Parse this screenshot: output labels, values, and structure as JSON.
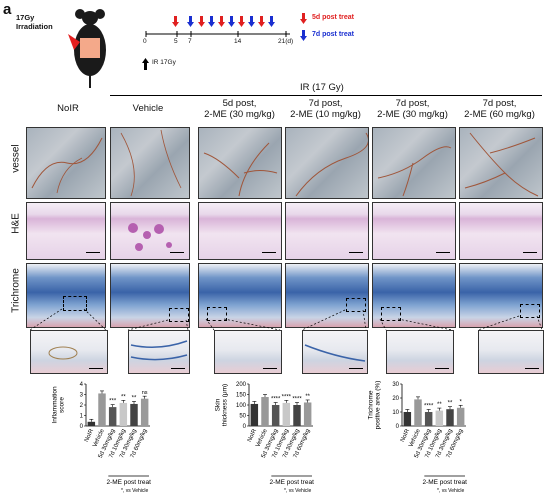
{
  "panel_letter": "a",
  "irradiation_label": "17Gy\nIrradiation",
  "timeline": {
    "ticks": [
      "0",
      "5",
      "7",
      "14",
      "21(d)"
    ],
    "ir_label": "IR 17Gy",
    "legend": [
      {
        "label": "5d post treat",
        "color": "#e02020"
      },
      {
        "label": "7d post treat",
        "color": "#1a2fd0"
      }
    ]
  },
  "ir_group_label": "IR (17 Gy)",
  "columns": [
    "NoIR",
    "Vehicle",
    "5d post,\n2-ME (30 mg/kg)",
    "7d post,\n2-ME (10 mg/kg)",
    "7d post,\n2-ME (30 mg/kg)",
    "7d post,\n2-ME (60 mg/kg)"
  ],
  "rows": [
    "vessel",
    "H&E",
    "Trichrome"
  ],
  "charts_footer": {
    "group_label": "2-ME post treat",
    "note": "*, vs Vehicle"
  },
  "chart_data": [
    {
      "type": "bar",
      "ylabel": "Inflammation\nscore",
      "ylim": [
        0,
        4
      ],
      "yticks": [
        "0",
        "1",
        "2",
        "3",
        "4"
      ],
      "categories": [
        "NoIR",
        "Vehicle",
        "5d 30mg/kg",
        "7d 10mg/kg",
        "7d 30mg/kg",
        "7d 60mg/kg"
      ],
      "values": [
        0.4,
        3.1,
        1.8,
        2.2,
        2.1,
        2.6
      ],
      "sig": [
        "",
        "",
        "***",
        "**",
        "**",
        "ns"
      ],
      "colors": [
        "#333333",
        "#999999",
        "#555555",
        "#c8c8c8",
        "#444444",
        "#9a9a9a"
      ]
    },
    {
      "type": "bar",
      "ylabel": "Skin\nthickness (μm)",
      "ylim": [
        0,
        200
      ],
      "yticks": [
        "0",
        "50",
        "100",
        "150",
        "200"
      ],
      "categories": [
        "NoIR",
        "Vehicle",
        "5d 30mg/kg",
        "7d 10mg/kg",
        "7d 30mg/kg",
        "7d 60mg/kg"
      ],
      "values": [
        105,
        138,
        100,
        110,
        100,
        112
      ],
      "sig": [
        "",
        "",
        "****",
        "****",
        "****",
        "**"
      ],
      "colors": [
        "#333333",
        "#999999",
        "#555555",
        "#c8c8c8",
        "#444444",
        "#9a9a9a"
      ]
    },
    {
      "type": "bar",
      "ylabel": "Trichrome\npositive area (%)",
      "ylim": [
        0,
        30
      ],
      "yticks": [
        "0",
        "10",
        "20",
        "30"
      ],
      "categories": [
        "NoIR",
        "Vehicle",
        "5d 30mg/kg",
        "7d 10mg/kg",
        "7d 30mg/kg",
        "7d 60mg/kg"
      ],
      "values": [
        10,
        19,
        10,
        11,
        12,
        13
      ],
      "sig": [
        "",
        "",
        "****",
        "**",
        "**",
        "*"
      ],
      "colors": [
        "#333333",
        "#999999",
        "#555555",
        "#c8c8c8",
        "#444444",
        "#9a9a9a"
      ]
    }
  ]
}
